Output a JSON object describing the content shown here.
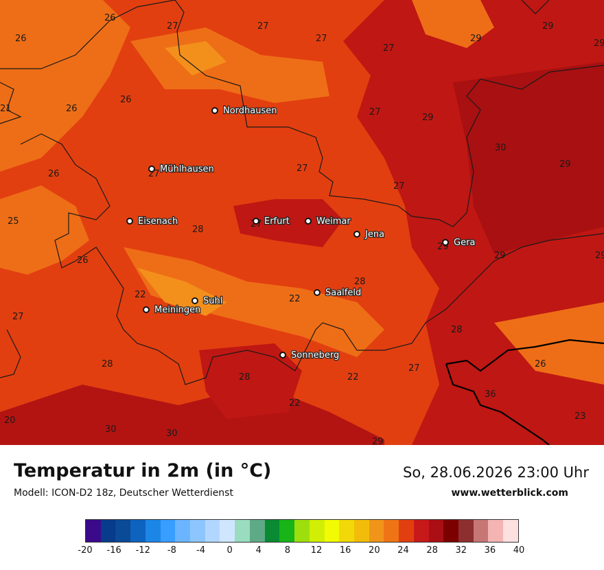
{
  "map": {
    "cities": [
      {
        "name": "Nordhausen"
      },
      {
        "name": "Mühlhausen"
      },
      {
        "name": "Eisenach"
      },
      {
        "name": "Erfurt"
      },
      {
        "name": "Weimar"
      },
      {
        "name": "Jena"
      },
      {
        "name": "Gera"
      },
      {
        "name": "Saalfeld"
      },
      {
        "name": "Suhl"
      },
      {
        "name": "Meiningen"
      },
      {
        "name": "Sonneberg"
      }
    ],
    "values": [
      "26",
      "27",
      "27",
      "27",
      "29",
      "29",
      "26",
      "27",
      "26",
      "26",
      "27",
      "29",
      "27",
      "29",
      "30",
      "27",
      "29",
      "26",
      "27",
      "27",
      "25",
      "28",
      "29",
      "26",
      "29",
      "28",
      "22",
      "22",
      "27",
      "22",
      "28",
      "28",
      "27",
      "28",
      "26",
      "22",
      "36",
      "30",
      "30",
      "28",
      "20",
      "23",
      "29",
      "21",
      "29",
      "29"
    ],
    "colors": {
      "base": "#e23f10",
      "light": "#ee6e17",
      "lighter": "#f3901c",
      "dark": "#bf1713",
      "darker": "#a81011",
      "border": "#1a1a1a"
    }
  },
  "footer": {
    "title": "Temperatur in 2m (in °C)",
    "model": "Modell: ICON-D2 18z, Deutscher Wetterdienst",
    "datetime": "So, 28.06.2026 23:00 Uhr",
    "website": "www.wetterblick.com"
  },
  "legend": {
    "colors": [
      "#3b0a8a",
      "#083b8c",
      "#0a4a96",
      "#0e63bf",
      "#1c86e6",
      "#389eff",
      "#6bb4ff",
      "#8dc6ff",
      "#b2d7ff",
      "#d0e6ff",
      "#99dcc0",
      "#5faa86",
      "#0a8a32",
      "#18b418",
      "#9fde0d",
      "#d0ef05",
      "#f2fa04",
      "#f2d808",
      "#f2bd0a",
      "#f0941a",
      "#ef7416",
      "#e23f10",
      "#c8191a",
      "#a90f14",
      "#7c0000",
      "#8e2f2f",
      "#c77676",
      "#f5b4b4",
      "#fde0e0"
    ],
    "ticks": [
      "-20",
      "-16",
      "-12",
      "-8",
      "-4",
      "0",
      "4",
      "8",
      "12",
      "16",
      "20",
      "24",
      "28",
      "32",
      "36",
      "40"
    ]
  }
}
